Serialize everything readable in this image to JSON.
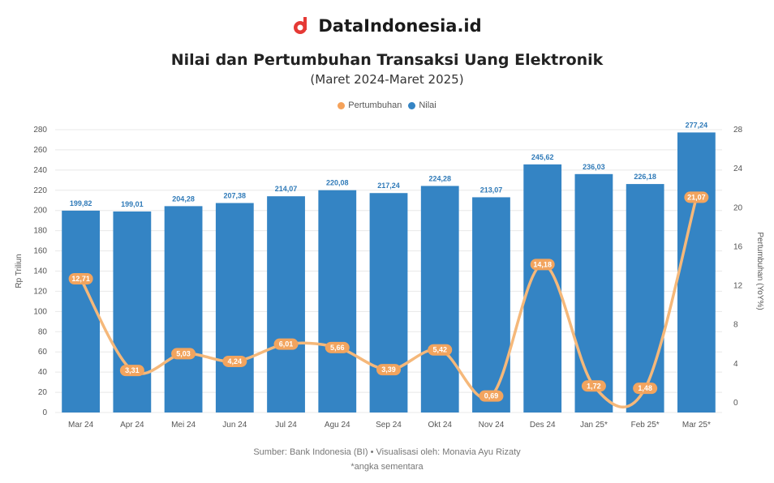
{
  "brand": {
    "name": "DataIndonesia.id",
    "logo_icon": "dataindonesia-logo-icon",
    "logo_color": "#e53935"
  },
  "chart_data": {
    "type": "bar",
    "title": "Nilai dan Pertumbuhan Transaksi Uang Elektronik",
    "subtitle": "(Maret 2024-Maret 2025)",
    "categories": [
      "Mar 24",
      "Apr 24",
      "Mei 24",
      "Jun 24",
      "Jul 24",
      "Agu 24",
      "Sep 24",
      "Okt 24",
      "Nov 24",
      "Des 24",
      "Jan 25*",
      "Feb 25*",
      "Mar 25*"
    ],
    "series": [
      {
        "name": "Nilai",
        "type": "bar",
        "axis": "left",
        "color": "#3484c4",
        "values": [
          199.82,
          199.01,
          204.28,
          207.38,
          214.07,
          220.08,
          217.24,
          224.28,
          213.07,
          245.62,
          236.03,
          226.18,
          277.24
        ],
        "labels": [
          "199,82",
          "199,01",
          "204,28",
          "207,38",
          "214,07",
          "220,08",
          "217,24",
          "224,28",
          "213,07",
          "245,62",
          "236,03",
          "226,18",
          "277,24"
        ]
      },
      {
        "name": "Pertumbuhan",
        "type": "line",
        "axis": "right",
        "color": "#f5b87a",
        "values": [
          12.71,
          3.31,
          5.03,
          4.24,
          6.01,
          5.66,
          3.39,
          5.42,
          0.69,
          14.18,
          1.72,
          1.48,
          21.07
        ],
        "labels": [
          "12,71",
          "3,31",
          "5,03",
          "4,24",
          "6,01",
          "5,66",
          "3,39",
          "5,42",
          "0,69",
          "14,18",
          "1,72",
          "1,48",
          "21,07"
        ]
      }
    ],
    "ylabel": "Rp Triliun",
    "ylim": [
      0,
      280
    ],
    "yticks": [
      0,
      20,
      40,
      60,
      80,
      100,
      120,
      140,
      160,
      180,
      200,
      220,
      240,
      260,
      280
    ],
    "y2label": "Pertumbuhan (YoY%)",
    "y2lim": [
      -1,
      28
    ],
    "y2ticks": [
      0,
      4,
      8,
      12,
      16,
      20,
      24,
      28
    ],
    "legend": "top-center",
    "grid": true
  },
  "source": "Sumber: Bank Indonesia (BI) • Visualisasi oleh: Monavia Ayu Rizaty",
  "note": "*angka sementara"
}
